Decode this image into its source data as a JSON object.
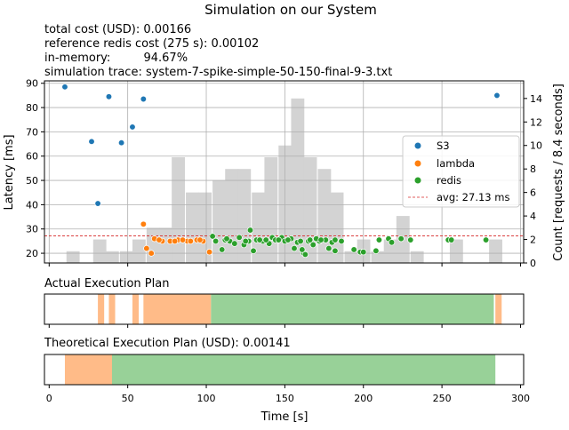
{
  "title": "Simulation on our System",
  "info_lines": [
    "total cost (USD):  0.00166",
    "reference redis cost (275 s): 0.00102",
    "in-memory:         94.67%",
    "simulation trace:  system-7-spike-simple-50-150-final-9-3.txt"
  ],
  "colors": {
    "s3": "#1f77b4",
    "lambda": "#ff7f0e",
    "redis": "#2ca02c",
    "hist": "#d3d3d3",
    "avg": "#d62728",
    "plan_lambda": "#ffbb88",
    "plan_redis": "#98d198"
  },
  "chart_data": [
    {
      "type": "scatter",
      "xlabel": "",
      "ylabel": "Latency [ms]",
      "y2label": "Count [requests / 8.4 seconds]",
      "xlim": [
        -3,
        302
      ],
      "ylim": [
        16,
        91
      ],
      "y2lim": [
        0,
        15.5
      ],
      "yticks": [
        20,
        30,
        40,
        50,
        60,
        70,
        80,
        90
      ],
      "y2ticks": [
        0,
        2,
        4,
        6,
        8,
        10,
        12,
        14
      ],
      "xticks": [
        0,
        50,
        100,
        150,
        200,
        250,
        300
      ],
      "grid": true,
      "legend_position": "center-right",
      "histogram": {
        "bin_width": 8.4,
        "counts": [
          [
            11,
            1
          ],
          [
            28,
            2
          ],
          [
            36,
            1
          ],
          [
            45,
            1
          ],
          [
            53,
            2
          ],
          [
            62,
            3
          ],
          [
            70,
            3
          ],
          [
            78,
            9
          ],
          [
            87,
            6
          ],
          [
            95,
            6
          ],
          [
            104,
            7
          ],
          [
            112,
            8
          ],
          [
            120,
            8
          ],
          [
            129,
            6
          ],
          [
            137,
            9
          ],
          [
            146,
            10
          ],
          [
            154,
            14
          ],
          [
            162,
            9
          ],
          [
            171,
            8
          ],
          [
            179,
            6
          ],
          [
            188,
            1
          ],
          [
            196,
            2
          ],
          [
            205,
            1
          ],
          [
            213,
            2
          ],
          [
            221,
            4
          ],
          [
            230,
            1
          ],
          [
            255,
            2
          ],
          [
            280,
            2
          ]
        ]
      },
      "series": [
        {
          "name": "S3",
          "points": [
            [
              10,
              88.5
            ],
            [
              27,
              66
            ],
            [
              31,
              40.5
            ],
            [
              38,
              84.5
            ],
            [
              46,
              65.5
            ],
            [
              53,
              72
            ],
            [
              60,
              83.5
            ],
            [
              285,
              85
            ]
          ]
        },
        {
          "name": "lambda",
          "points": [
            [
              60,
              32
            ],
            [
              62,
              22
            ],
            [
              65,
              20
            ],
            [
              67,
              26
            ],
            [
              72,
              25
            ],
            [
              77,
              25
            ],
            [
              82,
              25.5
            ],
            [
              88,
              25
            ],
            [
              94,
              25.5
            ],
            [
              98,
              25
            ],
            [
              102,
              20.5
            ],
            [
              70,
              25.5
            ],
            [
              80,
              25
            ],
            [
              85,
              25.5
            ],
            [
              90,
              25
            ],
            [
              96,
              25.5
            ]
          ]
        },
        {
          "name": "redis",
          "points": [
            [
              104,
              27
            ],
            [
              106,
              25
            ],
            [
              110,
              21.5
            ],
            [
              112,
              25.5
            ],
            [
              115,
              25
            ],
            [
              118,
              24
            ],
            [
              121,
              26.5
            ],
            [
              124,
              23.5
            ],
            [
              127,
              25
            ],
            [
              128,
              29.5
            ],
            [
              130,
              21
            ],
            [
              132,
              25.5
            ],
            [
              136,
              25
            ],
            [
              140,
              24
            ],
            [
              142,
              26.5
            ],
            [
              144,
              25.5
            ],
            [
              148,
              26.5
            ],
            [
              150,
              25
            ],
            [
              154,
              26
            ],
            [
              156,
              22
            ],
            [
              158,
              24.5
            ],
            [
              162,
              20
            ],
            [
              163,
              19.5
            ],
            [
              165,
              25
            ],
            [
              168,
              23.5
            ],
            [
              172,
              25
            ],
            [
              176,
              25.5
            ],
            [
              178,
              22
            ],
            [
              180,
              24.5
            ],
            [
              182,
              21
            ],
            [
              186,
              25
            ],
            [
              194,
              21.5
            ],
            [
              198,
              20.5
            ],
            [
              200,
              20.5
            ],
            [
              208,
              21
            ],
            [
              210,
              25.5
            ],
            [
              216,
              26
            ],
            [
              218,
              24.5
            ],
            [
              224,
              26
            ],
            [
              230,
              25.5
            ],
            [
              254,
              25.5
            ],
            [
              256,
              25.5
            ],
            [
              278,
              25.5
            ],
            [
              170,
              26
            ],
            [
              173,
              25.5
            ],
            [
              182,
              25.5
            ],
            [
              161,
              21.5
            ],
            [
              160,
              25
            ],
            [
              166,
              25.5
            ],
            [
              138,
              25.5
            ],
            [
              146,
              25.5
            ],
            [
              152,
              25.5
            ],
            [
              134,
              25.5
            ],
            [
              125,
              25
            ],
            [
              113,
              26
            ]
          ]
        }
      ],
      "average": {
        "label": "avg: 27.13 ms",
        "value": 27.13
      }
    },
    {
      "type": "timeline",
      "title": "Actual Execution Plan",
      "segments": [
        {
          "backend": "lambda",
          "start": 31,
          "end": 35
        },
        {
          "backend": "lambda",
          "start": 38,
          "end": 42
        },
        {
          "backend": "lambda",
          "start": 53,
          "end": 57
        },
        {
          "backend": "lambda",
          "start": 60,
          "end": 103
        },
        {
          "backend": "redis",
          "start": 103,
          "end": 283
        },
        {
          "backend": "lambda",
          "start": 284,
          "end": 288
        }
      ]
    },
    {
      "type": "timeline",
      "title": "Theoretical Execution Plan (USD): 0.00141",
      "xlabel": "Time [s]",
      "segments": [
        {
          "backend": "lambda",
          "start": 10,
          "end": 40
        },
        {
          "backend": "redis",
          "start": 40,
          "end": 284
        }
      ]
    }
  ]
}
